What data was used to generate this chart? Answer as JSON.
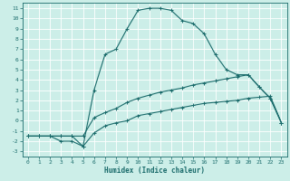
{
  "xlabel": "Humidex (Indice chaleur)",
  "bg_color": "#cceee8",
  "grid_color": "#ffffff",
  "line_color": "#1a6b6b",
  "xlim": [
    -0.5,
    23.5
  ],
  "ylim": [
    -3.5,
    11.5
  ],
  "xticks": [
    0,
    1,
    2,
    3,
    4,
    5,
    6,
    7,
    8,
    9,
    10,
    11,
    12,
    13,
    14,
    15,
    16,
    17,
    18,
    19,
    20,
    21,
    22,
    23
  ],
  "yticks": [
    -3,
    -2,
    -1,
    0,
    1,
    2,
    3,
    4,
    5,
    6,
    7,
    8,
    9,
    10,
    11
  ],
  "series": [
    {
      "x": [
        0,
        1,
        2,
        3,
        4,
        5,
        6,
        7,
        8,
        9,
        10,
        11,
        12,
        13,
        14,
        15,
        16,
        17,
        18,
        19,
        20,
        21,
        22,
        23
      ],
      "y": [
        -1.5,
        -1.5,
        -1.5,
        -1.5,
        -1.5,
        -2.5,
        3.0,
        6.5,
        7.0,
        9.0,
        10.8,
        11.0,
        11.0,
        10.8,
        9.8,
        9.5,
        8.5,
        6.5,
        5.0,
        4.5,
        4.5,
        3.3,
        2.2,
        -0.2
      ]
    },
    {
      "x": [
        0,
        1,
        2,
        3,
        4,
        5,
        6,
        7,
        8,
        9,
        10,
        11,
        12,
        13,
        14,
        15,
        16,
        17,
        18,
        19,
        20,
        21,
        22,
        23
      ],
      "y": [
        -1.5,
        -1.5,
        -1.5,
        -1.5,
        -1.5,
        -1.5,
        0.3,
        0.8,
        1.2,
        1.8,
        2.2,
        2.5,
        2.8,
        3.0,
        3.2,
        3.5,
        3.7,
        3.9,
        4.1,
        4.3,
        4.5,
        3.3,
        2.2,
        -0.2
      ]
    },
    {
      "x": [
        0,
        1,
        2,
        3,
        4,
        5,
        6,
        7,
        8,
        9,
        10,
        11,
        12,
        13,
        14,
        15,
        16,
        17,
        18,
        19,
        20,
        21,
        22,
        23
      ],
      "y": [
        -1.5,
        -1.5,
        -1.5,
        -2.0,
        -2.0,
        -2.5,
        -1.2,
        -0.5,
        -0.2,
        0.0,
        0.5,
        0.7,
        0.9,
        1.1,
        1.3,
        1.5,
        1.7,
        1.8,
        1.9,
        2.0,
        2.2,
        2.3,
        2.4,
        -0.2
      ]
    }
  ]
}
